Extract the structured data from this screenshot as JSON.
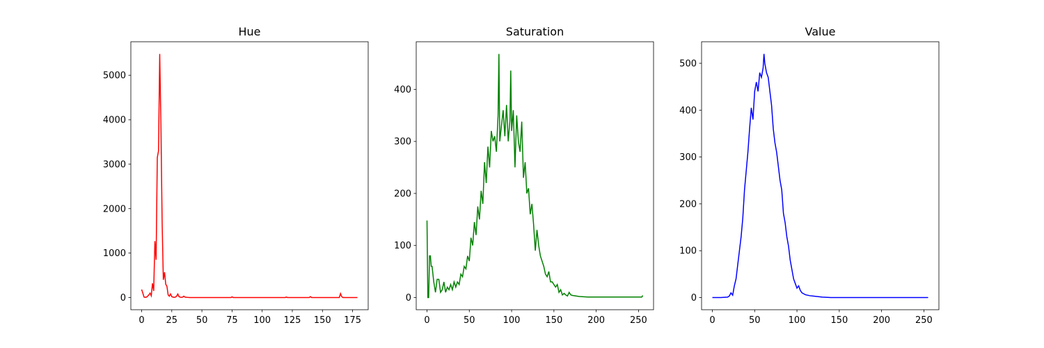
{
  "chart_data": [
    {
      "type": "line",
      "title": "Hue",
      "color": "#ff0000",
      "x": [
        0,
        1,
        2,
        3,
        4,
        5,
        6,
        7,
        8,
        9,
        10,
        11,
        12,
        13,
        14,
        15,
        16,
        17,
        18,
        19,
        20,
        21,
        22,
        23,
        24,
        25,
        26,
        27,
        28,
        29,
        30,
        31,
        32,
        33,
        34,
        35,
        36,
        37,
        38,
        39,
        40,
        50,
        74,
        75,
        76,
        119,
        120,
        121,
        139,
        140,
        141,
        164,
        165,
        166,
        167,
        179
      ],
      "values": [
        180,
        100,
        10,
        5,
        10,
        30,
        60,
        100,
        40,
        320,
        150,
        1270,
        850,
        3150,
        3300,
        5480,
        3900,
        1700,
        400,
        570,
        300,
        250,
        60,
        30,
        80,
        20,
        10,
        5,
        10,
        30,
        80,
        20,
        10,
        5,
        10,
        30,
        10,
        5,
        3,
        2,
        1,
        0,
        0,
        15,
        0,
        0,
        10,
        0,
        0,
        20,
        0,
        0,
        90,
        20,
        0,
        0
      ],
      "xlim": [
        -8.95,
        187.95
      ],
      "ylim": [
        -274,
        5754
      ],
      "xticks": [
        0,
        25,
        50,
        75,
        100,
        125,
        150,
        175
      ],
      "yticks": [
        0,
        1000,
        2000,
        3000,
        4000,
        5000
      ]
    },
    {
      "type": "line",
      "title": "Saturation",
      "color": "#008000",
      "x": [
        0,
        1,
        2,
        3,
        4,
        5,
        6,
        8,
        10,
        12,
        14,
        16,
        18,
        20,
        22,
        24,
        26,
        28,
        30,
        32,
        34,
        36,
        38,
        40,
        42,
        44,
        46,
        48,
        50,
        52,
        54,
        56,
        58,
        60,
        62,
        64,
        66,
        68,
        70,
        72,
        74,
        76,
        78,
        80,
        82,
        84,
        85,
        86,
        88,
        90,
        92,
        94,
        96,
        98,
        99,
        100,
        102,
        104,
        106,
        108,
        110,
        112,
        114,
        116,
        118,
        120,
        122,
        124,
        126,
        128,
        130,
        132,
        134,
        136,
        138,
        140,
        142,
        144,
        146,
        148,
        150,
        152,
        154,
        156,
        158,
        160,
        162,
        164,
        166,
        168,
        170,
        172,
        176,
        180,
        190,
        200,
        220,
        240,
        254,
        255
      ],
      "values": [
        148,
        0,
        0,
        80,
        80,
        60,
        60,
        30,
        10,
        35,
        35,
        10,
        15,
        30,
        10,
        20,
        15,
        25,
        15,
        30,
        20,
        30,
        25,
        45,
        40,
        60,
        55,
        80,
        70,
        115,
        100,
        145,
        120,
        175,
        150,
        205,
        180,
        260,
        220,
        290,
        250,
        320,
        300,
        310,
        280,
        350,
        468,
        300,
        330,
        360,
        310,
        370,
        300,
        340,
        436,
        320,
        360,
        250,
        350,
        300,
        280,
        338,
        230,
        260,
        200,
        210,
        160,
        180,
        140,
        90,
        130,
        100,
        80,
        70,
        60,
        45,
        40,
        50,
        30,
        30,
        25,
        20,
        25,
        10,
        15,
        5,
        8,
        5,
        3,
        10,
        5,
        4,
        3,
        2,
        1,
        1,
        1,
        1,
        1,
        4
      ],
      "xlim": [
        -12.75,
        267.75
      ],
      "ylim": [
        -23.4,
        491.4
      ],
      "xticks": [
        0,
        50,
        100,
        150,
        200,
        250
      ],
      "yticks": [
        0,
        100,
        200,
        300,
        400
      ]
    },
    {
      "type": "line",
      "title": "Value",
      "color": "#0000ff",
      "x": [
        0,
        10,
        18,
        20,
        22,
        24,
        26,
        28,
        30,
        32,
        34,
        36,
        38,
        40,
        42,
        44,
        46,
        48,
        50,
        52,
        54,
        56,
        58,
        60,
        61,
        62,
        64,
        66,
        68,
        70,
        72,
        74,
        76,
        78,
        80,
        82,
        84,
        86,
        88,
        90,
        92,
        94,
        96,
        98,
        100,
        102,
        104,
        106,
        108,
        110,
        115,
        120,
        130,
        140,
        255
      ],
      "values": [
        0,
        0,
        1,
        3,
        10,
        5,
        25,
        40,
        70,
        100,
        130,
        170,
        230,
        270,
        310,
        360,
        405,
        380,
        440,
        460,
        440,
        480,
        470,
        490,
        520,
        500,
        480,
        470,
        440,
        410,
        360,
        330,
        310,
        280,
        250,
        230,
        180,
        160,
        130,
        110,
        80,
        60,
        40,
        30,
        20,
        25,
        15,
        10,
        8,
        6,
        4,
        3,
        1,
        0,
        0
      ],
      "xlim": [
        -12.75,
        267.75
      ],
      "ylim": [
        -26,
        546
      ],
      "xticks": [
        0,
        50,
        100,
        150,
        200,
        250
      ],
      "yticks": [
        0,
        100,
        200,
        300,
        400,
        500
      ]
    }
  ]
}
